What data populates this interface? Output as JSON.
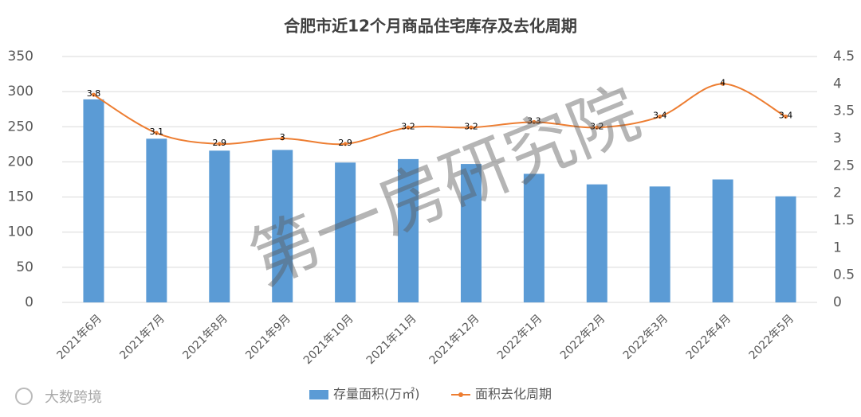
{
  "chart_data": {
    "type": "bar_line",
    "title": "合肥市近12个月商品住宅库存及去化周期",
    "categories": [
      "2021年6月",
      "2021年7月",
      "2021年8月",
      "2021年9月",
      "2021年10月",
      "2021年11月",
      "2021年12月",
      "2022年1月",
      "2022年2月",
      "2022年3月",
      "2022年4月",
      "2022年5月"
    ],
    "series": [
      {
        "name": "存量面积(万㎡)",
        "color": "#5b9bd5",
        "type": "bar",
        "values": [
          289,
          233,
          216,
          217,
          199,
          204,
          197,
          183,
          168,
          165,
          175,
          151
        ]
      },
      {
        "name": "面积去化周期",
        "color": "#ed7d31",
        "type": "line",
        "axis": "y2",
        "values": [
          3.8,
          3.1,
          2.9,
          3,
          2.9,
          3.2,
          3.2,
          3.3,
          3.2,
          3.4,
          4,
          3.4
        ]
      }
    ],
    "ylim": [
      0,
      350
    ],
    "yticks": [
      0,
      50,
      100,
      150,
      200,
      250,
      300,
      350
    ],
    "y2lim": [
      0,
      4.5
    ],
    "y2ticks": [
      0,
      0.5,
      1,
      1.5,
      2,
      2.5,
      3,
      3.5,
      4,
      4.5
    ],
    "grid": true,
    "legend": "bottom",
    "watermarks": [
      "第一房研究院",
      "大数跨境"
    ]
  }
}
